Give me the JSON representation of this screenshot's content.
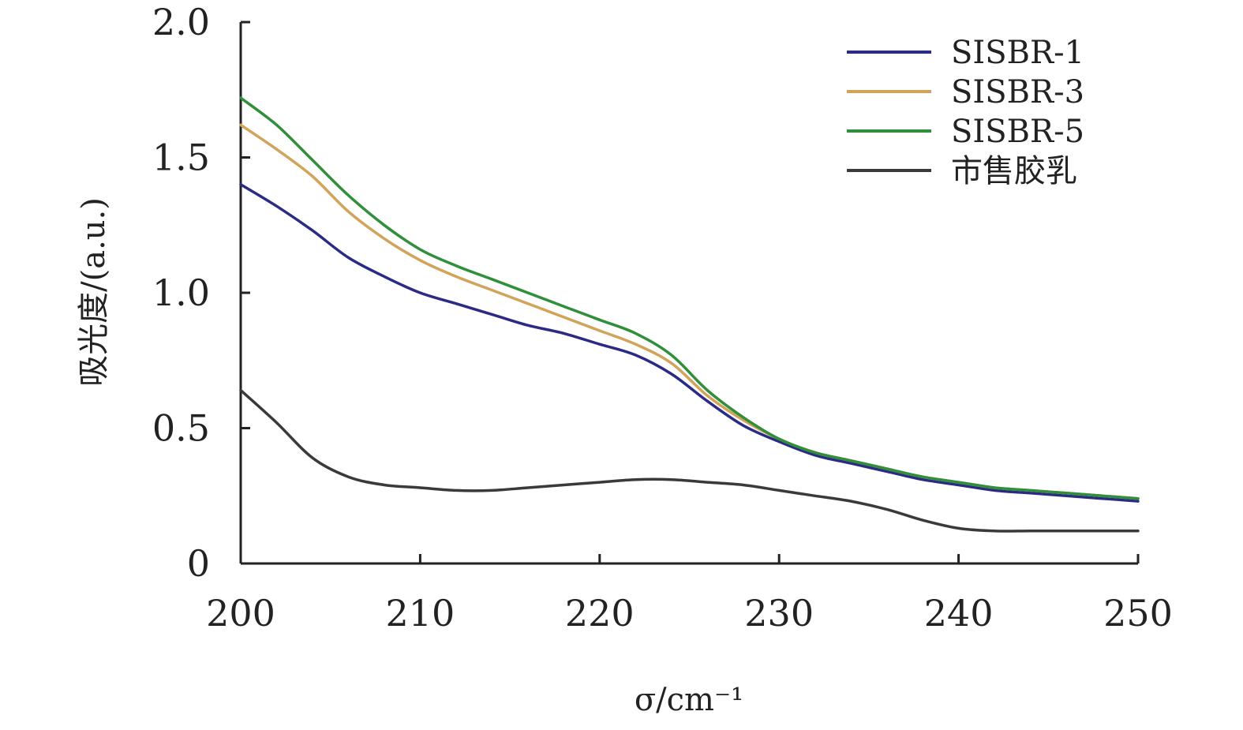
{
  "chart_data": {
    "type": "line",
    "title": "",
    "xlabel": "σ/cm⁻¹",
    "ylabel": "吸光度/(a.u.)",
    "xlim": [
      200,
      250
    ],
    "ylim": [
      0,
      2.0
    ],
    "x_ticks": [
      "200",
      "210",
      "220",
      "230",
      "240",
      "250"
    ],
    "y_ticks": [
      "0",
      "0.5",
      "1.0",
      "1.5",
      "2.0"
    ],
    "grid": false,
    "legend_position": "top-right",
    "x": [
      200,
      202,
      204,
      206,
      208,
      210,
      212,
      214,
      216,
      218,
      220,
      222,
      224,
      226,
      228,
      230,
      232,
      234,
      236,
      238,
      240,
      242,
      244,
      246,
      248,
      250
    ],
    "series": [
      {
        "name": "SISBR-1",
        "color": "#2b2b86",
        "values": [
          1.4,
          1.32,
          1.23,
          1.13,
          1.06,
          1.0,
          0.96,
          0.92,
          0.88,
          0.85,
          0.81,
          0.77,
          0.7,
          0.6,
          0.51,
          0.45,
          0.4,
          0.37,
          0.34,
          0.31,
          0.29,
          0.27,
          0.26,
          0.25,
          0.24,
          0.23
        ]
      },
      {
        "name": "SISBR-3",
        "color": "#d2a35a",
        "values": [
          1.62,
          1.53,
          1.43,
          1.3,
          1.2,
          1.12,
          1.06,
          1.01,
          0.96,
          0.91,
          0.86,
          0.81,
          0.74,
          0.62,
          0.53,
          0.46,
          0.41,
          0.38,
          0.35,
          0.32,
          0.3,
          0.28,
          0.27,
          0.26,
          0.25,
          0.24
        ]
      },
      {
        "name": "SISBR-5",
        "color": "#2f8f3a",
        "values": [
          1.72,
          1.62,
          1.49,
          1.36,
          1.25,
          1.16,
          1.1,
          1.05,
          1.0,
          0.95,
          0.9,
          0.85,
          0.77,
          0.64,
          0.54,
          0.46,
          0.41,
          0.38,
          0.35,
          0.32,
          0.3,
          0.28,
          0.27,
          0.26,
          0.25,
          0.24
        ]
      },
      {
        "name": "市售胶乳",
        "color": "#3a3a3a",
        "values": [
          0.64,
          0.52,
          0.39,
          0.32,
          0.29,
          0.28,
          0.27,
          0.27,
          0.28,
          0.29,
          0.3,
          0.31,
          0.31,
          0.3,
          0.29,
          0.27,
          0.25,
          0.23,
          0.2,
          0.16,
          0.13,
          0.12,
          0.12,
          0.12,
          0.12,
          0.12
        ]
      }
    ]
  }
}
